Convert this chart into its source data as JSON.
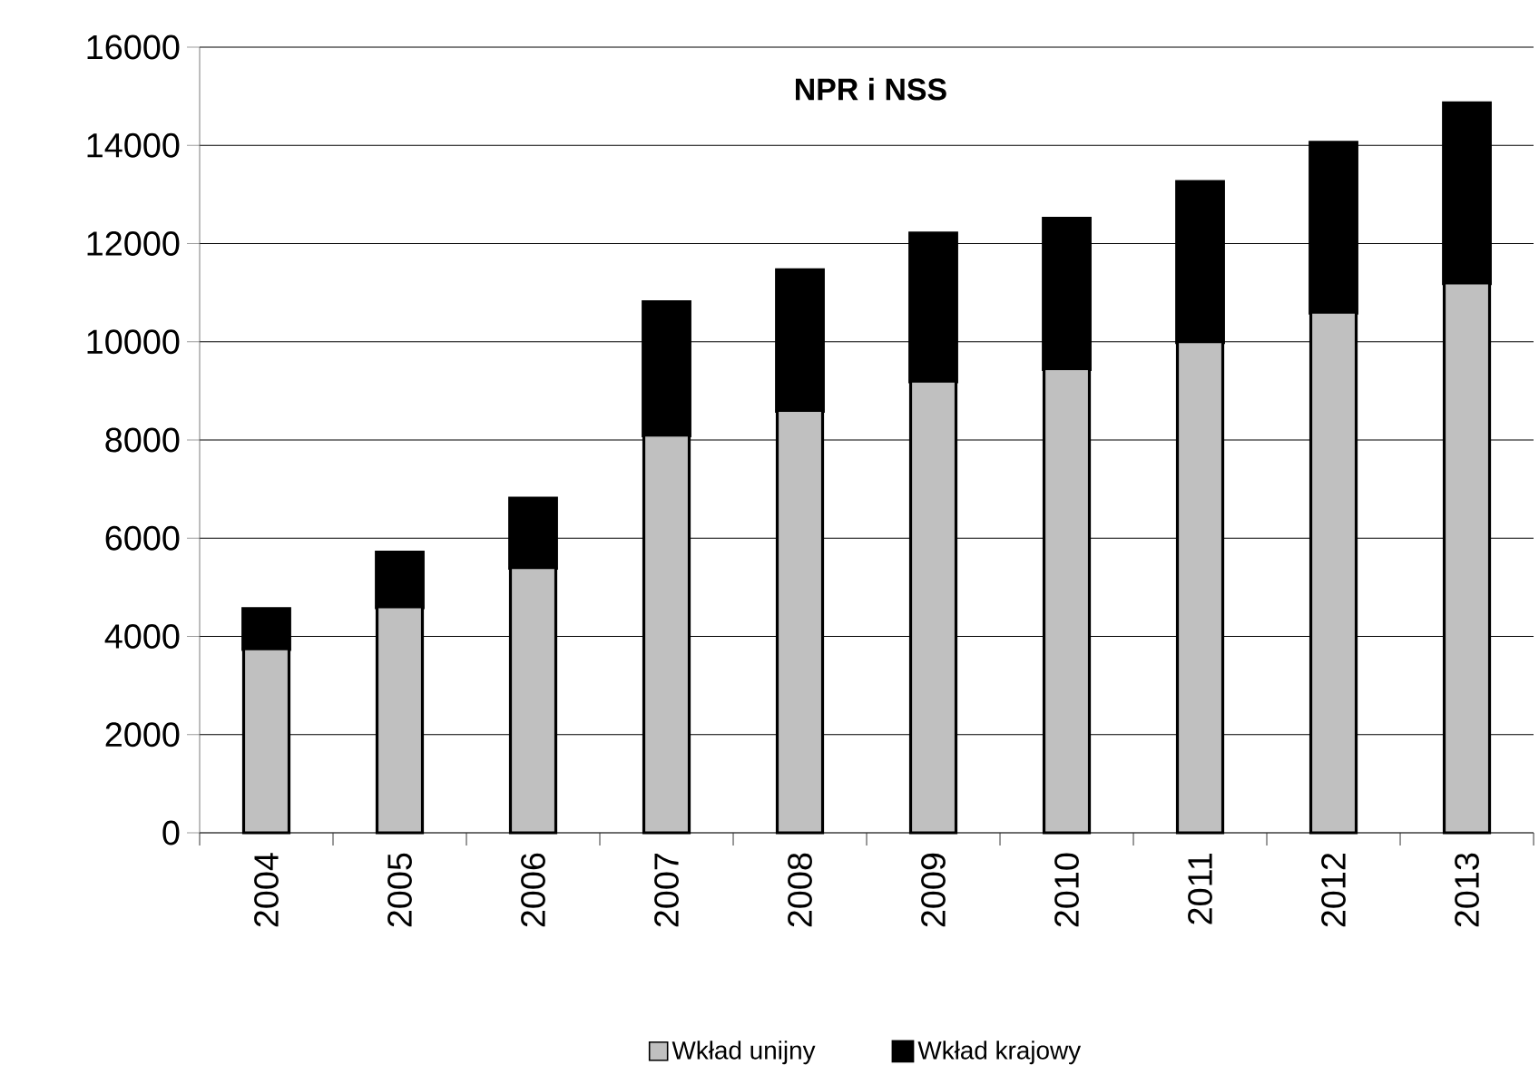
{
  "chart_data": {
    "type": "bar",
    "stacked": true,
    "title": "NPR i NSS",
    "categories": [
      "2004",
      "2005",
      "2006",
      "2007",
      "2008",
      "2009",
      "2010",
      "2011",
      "2012",
      "2013"
    ],
    "series": [
      {
        "name": "Wkład unijny",
        "color": "#c0c0c0",
        "values": [
          3750,
          4600,
          5400,
          8100,
          8600,
          9200,
          9450,
          10000,
          10600,
          11200
        ]
      },
      {
        "name": "Wkład krajowy",
        "color": "#000000",
        "values": [
          800,
          1100,
          1400,
          2700,
          2850,
          3000,
          3050,
          3250,
          3450,
          3650
        ]
      }
    ],
    "ylim": [
      0,
      16000
    ],
    "yticks": [
      0,
      2000,
      4000,
      6000,
      8000,
      10000,
      12000,
      14000,
      16000
    ],
    "grid": "y",
    "legend": "bottom"
  }
}
